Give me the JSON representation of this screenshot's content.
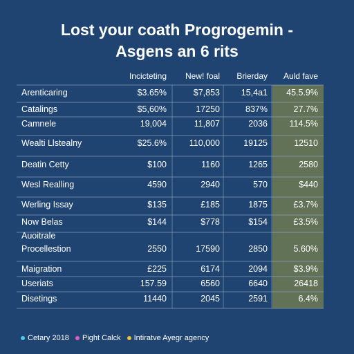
{
  "title": {
    "line1": "Lost your coath Progrogemin -",
    "line2": "Asgens an 6 rits"
  },
  "colors": {
    "background": "#1f4472",
    "highlight_column": "#6e7a52",
    "rule": "#8ea3bd",
    "legend": [
      "#4ec9e8",
      "#e060c0",
      "#e8c23a"
    ]
  },
  "chart_data": {
    "type": "table",
    "columns": [
      "Incicteting",
      "New! foal",
      "Brierday",
      "Auld fave"
    ],
    "highlighted_column": 3,
    "rows": [
      {
        "label": [
          "Arenticaring"
        ],
        "values": [
          "$3.65%",
          "$7,853",
          "15,4a1",
          "45.5.9%"
        ]
      },
      {
        "label": [
          "Catalings"
        ],
        "values": [
          "$5,60%",
          "17250",
          "837%",
          "27.7%"
        ]
      },
      {
        "label": [
          "Camnele"
        ],
        "values": [
          "19,004",
          "11,807",
          "2036",
          "114.5%"
        ]
      },
      {
        "label": [
          "Wealti Llstealny"
        ],
        "values": [
          "$25.6%",
          "110,000",
          "19125",
          "12510"
        ]
      },
      {
        "label": [
          "Deatin Cetty"
        ],
        "values": [
          "$100",
          "1160",
          "1265",
          "2580"
        ]
      },
      {
        "label": [
          "Wesl Realling"
        ],
        "values": [
          "4590",
          "2940",
          "570",
          "$440"
        ]
      },
      {
        "label": [
          "Werling Issay"
        ],
        "values": [
          "$135",
          "£185",
          "1875",
          "£3.7%"
        ]
      },
      {
        "label": [
          "Now Belas"
        ],
        "values": [
          "$144",
          "$778",
          "$154",
          "£3.5%"
        ]
      },
      {
        "label": [
          "Auoitrale",
          "Procellestion"
        ],
        "values": [
          "2550",
          "17590",
          "2850",
          "5.60%"
        ]
      },
      {
        "label": [
          "Maigration"
        ],
        "values": [
          "£225",
          "6174",
          "2094",
          "$3.9%"
        ]
      },
      {
        "label": [
          "Useriats"
        ],
        "values": [
          "157.59",
          "6560",
          "6640",
          "26418"
        ]
      },
      {
        "label": [
          "Disetings"
        ],
        "values": [
          "11440",
          "2045",
          "2591",
          "6.4%"
        ]
      }
    ],
    "legend": [
      "Cetary 2018",
      "Pight Calck",
      "Intiratve Ayegr agency"
    ]
  }
}
